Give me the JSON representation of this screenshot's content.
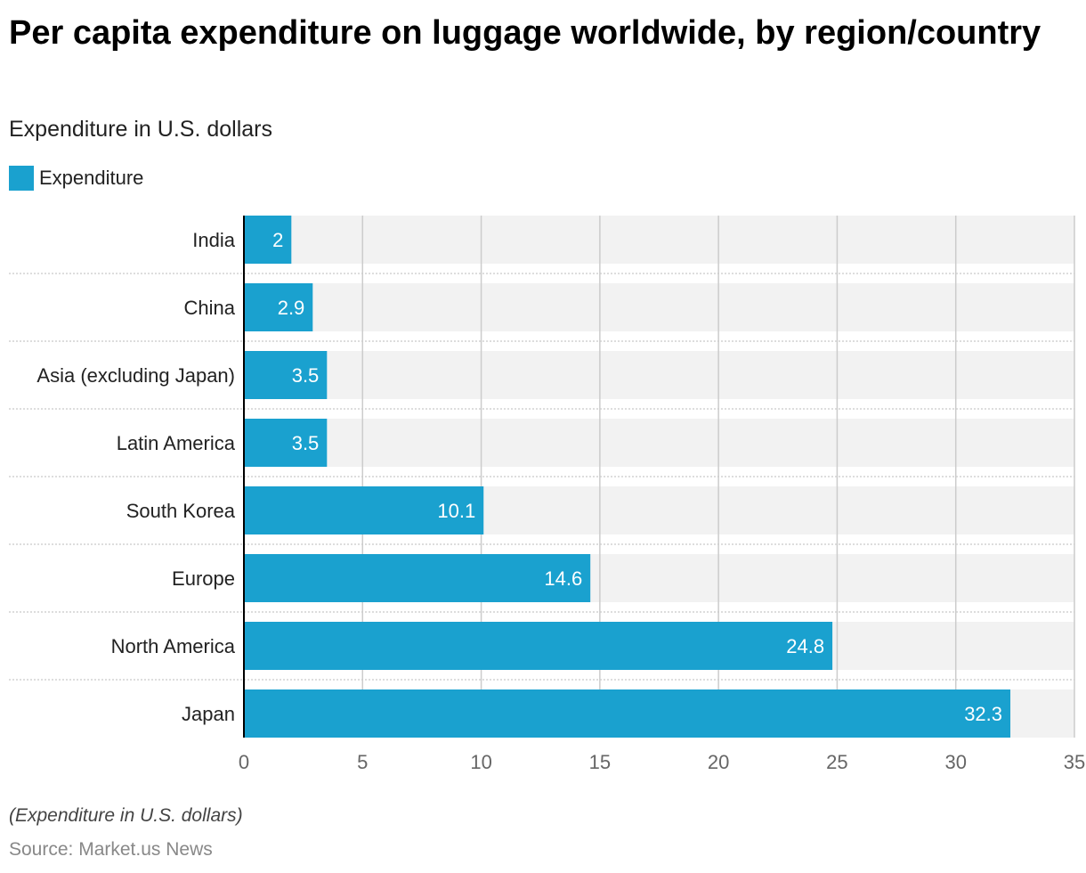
{
  "title": "Per capita expenditure on luggage worldwide, by region/country",
  "subtitle": "Expenditure in U.S. dollars",
  "footer_note": "(Expenditure in U.S. dollars)",
  "source": "Source: Market.us News",
  "colors": {
    "bar": "#1aa1cf",
    "band": "#f2f2f2",
    "grid": "#cccccc"
  },
  "chart_data": {
    "type": "bar",
    "orientation": "horizontal",
    "categories": [
      "India",
      "China",
      "Asia (excluding Japan)",
      "Latin America",
      "South Korea",
      "Europe",
      "North America",
      "Japan"
    ],
    "series": [
      {
        "name": "Expenditure",
        "values": [
          2,
          2.9,
          3.5,
          3.5,
          10.1,
          14.6,
          24.8,
          32.3
        ]
      }
    ],
    "xlim": [
      0,
      35
    ],
    "xticks": [
      0,
      5,
      10,
      15,
      20,
      25,
      30,
      35
    ],
    "grid": true,
    "legend": "top-left",
    "data_labels": true
  }
}
